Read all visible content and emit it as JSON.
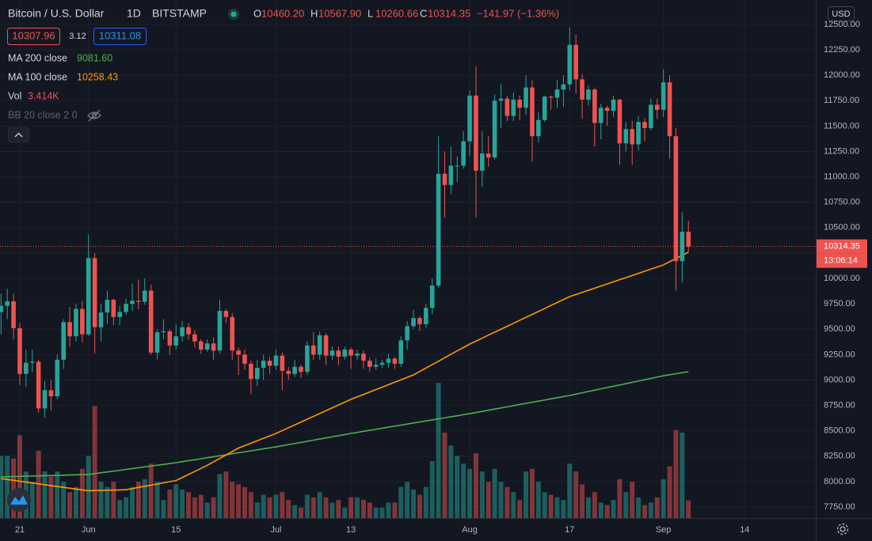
{
  "chart_data": {
    "type": "candlestick",
    "title": "Bitcoin / U.S. Dollar",
    "interval": "1D",
    "exchange": "BITSTAMP",
    "currency": "USD",
    "header": {
      "items": [
        {
          "key": "O",
          "value": "10460.20"
        },
        {
          "key": "H",
          "value": "10567.90"
        },
        {
          "key": "L",
          "value": "10260.66"
        },
        {
          "key": "C",
          "value": "10314.35"
        }
      ],
      "change": "−141.97 (−1.36%)"
    },
    "quote": {
      "bid": "10307.96",
      "spread": "3.12",
      "ask": "10311.08"
    },
    "up_color": "#26a69a",
    "down_color": "#ef5350",
    "grid": true,
    "ylim": [
      7641,
      12741
    ],
    "yticks": [
      {
        "value": 7750,
        "label": "7750.00"
      },
      {
        "value": 8000,
        "label": "8000.00"
      },
      {
        "value": 8250,
        "label": "8250.00"
      },
      {
        "value": 8500,
        "label": "8500.00"
      },
      {
        "value": 8750,
        "label": "8750.00"
      },
      {
        "value": 9000,
        "label": "9000.00"
      },
      {
        "value": 9250,
        "label": "9250.00"
      },
      {
        "value": 9500,
        "label": "9500.00"
      },
      {
        "value": 9750,
        "label": "9750.00"
      },
      {
        "value": 10000,
        "label": "10000.00"
      },
      {
        "value": 10250,
        "label": "10250.00"
      },
      {
        "value": 10500,
        "label": "10500.00"
      },
      {
        "value": 10750,
        "label": "10750.00"
      },
      {
        "value": 11000,
        "label": "11000.00"
      },
      {
        "value": 11250,
        "label": "11250.00"
      },
      {
        "value": 11500,
        "label": "11500.00"
      },
      {
        "value": 11750,
        "label": "11750.00"
      },
      {
        "value": 12000,
        "label": "12000.00"
      },
      {
        "value": 12250,
        "label": "12250.00"
      },
      {
        "value": 12500,
        "label": "12500.00"
      }
    ],
    "categories": [
      null,
      null,
      null,
      "21",
      null,
      null,
      null,
      null,
      null,
      null,
      null,
      null,
      null,
      null,
      "Jun",
      null,
      null,
      null,
      null,
      null,
      null,
      null,
      null,
      null,
      null,
      null,
      null,
      null,
      "15",
      null,
      null,
      null,
      null,
      null,
      null,
      null,
      null,
      null,
      null,
      null,
      null,
      null,
      null,
      null,
      "Jul",
      null,
      null,
      null,
      null,
      null,
      null,
      null,
      null,
      null,
      null,
      null,
      "13",
      null,
      null,
      null,
      null,
      null,
      null,
      null,
      null,
      null,
      null,
      null,
      null,
      null,
      null,
      null,
      null,
      null,
      null,
      "Aug",
      null,
      null,
      null,
      null,
      null,
      null,
      null,
      null,
      null,
      null,
      null,
      null,
      null,
      null,
      null,
      "17",
      null,
      null,
      null,
      null,
      null,
      null,
      null,
      null,
      null,
      null,
      null,
      null,
      null,
      null,
      "Sep",
      null,
      null,
      null,
      null,
      null,
      null,
      null,
      null,
      null,
      null,
      null,
      null,
      "14",
      null,
      null,
      null,
      null,
      null,
      null,
      null,
      null,
      null,
      null,
      null
    ],
    "open": [
      9670,
      9730,
      9775,
      9510,
      9060,
      9170,
      9180,
      8720,
      8900,
      8840,
      9200,
      9570,
      9430,
      9700,
      9450,
      10200,
      9520,
      9665,
      9790,
      9620,
      9670,
      9750,
      9780,
      9770,
      9880,
      9270,
      9470,
      9480,
      9340,
      9430,
      9520,
      9450,
      9380,
      9300,
      9360,
      9290,
      9680,
      9620,
      9290,
      9250,
      9160,
      9010,
      9120,
      9190,
      9140,
      9240,
      9090,
      9060,
      9130,
      9080,
      9340,
      9250,
      9440,
      9240,
      9290,
      9230,
      9300,
      9240,
      9260,
      9190,
      9130,
      9150,
      9170,
      9210,
      9160,
      9390,
      9530,
      9610,
      9550,
      9710,
      9930,
      11030,
      10920,
      11110,
      11110,
      11350,
      11800,
      11060,
      11230,
      11190,
      11750,
      11770,
      11600,
      11760,
      11680,
      11880,
      11400,
      11560,
      11790,
      11780,
      11860,
      11910,
      12300,
      11960,
      11760,
      11860,
      11530,
      11680,
      11650,
      11760,
      11330,
      11470,
      11320,
      11540,
      11480,
      11710,
      11660,
      11930,
      11400,
      10170,
      10460.2,
      null,
      null,
      null,
      null,
      null,
      null,
      null,
      null,
      null,
      null,
      null,
      null,
      null,
      null,
      null,
      null,
      null,
      null,
      null,
      null
    ],
    "high": [
      9850,
      9900,
      9850,
      9560,
      9300,
      9300,
      9200,
      8990,
      9000,
      9250,
      9600,
      9720,
      9750,
      9780,
      10430,
      10250,
      9750,
      9880,
      9800,
      9730,
      9800,
      9950,
      9990,
      10000,
      9940,
      9500,
      9600,
      9500,
      9550,
      9580,
      9560,
      9490,
      9400,
      9400,
      9420,
      9790,
      9700,
      9660,
      9320,
      9300,
      9190,
      9200,
      9250,
      9230,
      9300,
      9270,
      9130,
      9200,
      9150,
      9380,
      9470,
      9480,
      9460,
      9330,
      9330,
      9330,
      9320,
      9300,
      9290,
      9220,
      9210,
      9200,
      9260,
      9230,
      9430,
      9580,
      9690,
      9630,
      9750,
      10000,
      11400,
      11250,
      11300,
      11200,
      11450,
      11850,
      12090,
      11450,
      11400,
      11810,
      11910,
      11800,
      11830,
      11800,
      12000,
      11950,
      11640,
      11800,
      11800,
      11950,
      12000,
      12470,
      12400,
      12010,
      11900,
      11880,
      11720,
      11700,
      11800,
      11770,
      11540,
      11550,
      11600,
      11580,
      11770,
      11770,
      12060,
      12000,
      11480,
      10650,
      10567.9,
      null,
      null,
      null,
      null,
      null,
      null,
      null,
      null,
      null,
      null,
      null,
      null,
      null,
      null,
      null,
      null,
      null,
      null,
      null,
      null
    ],
    "low": [
      9450,
      9600,
      9400,
      8950,
      8930,
      9080,
      8680,
      8630,
      8700,
      8810,
      9110,
      9330,
      9380,
      9370,
      9430,
      9260,
      9380,
      9550,
      9540,
      9540,
      9640,
      9680,
      9700,
      9740,
      9250,
      9200,
      9400,
      9250,
      9300,
      9380,
      9400,
      9320,
      9260,
      9280,
      9200,
      9260,
      9560,
      9200,
      9050,
      9100,
      8860,
      8940,
      9000,
      9060,
      9100,
      8900,
      9000,
      9030,
      9020,
      9050,
      9200,
      9200,
      9150,
      9200,
      9150,
      9200,
      9110,
      9200,
      9110,
      9080,
      9100,
      9120,
      9120,
      9110,
      9130,
      9300,
      9500,
      9480,
      9510,
      9650,
      9910,
      10600,
      10830,
      10950,
      11080,
      11200,
      10600,
      10900,
      11100,
      11170,
      11480,
      11550,
      11550,
      11560,
      11610,
      11150,
      11340,
      11540,
      11660,
      11680,
      11690,
      11850,
      11820,
      11570,
      11700,
      11300,
      11370,
      11500,
      11590,
      11120,
      11250,
      11120,
      11260,
      11350,
      11460,
      11570,
      11590,
      11180,
      9880,
      9960,
      10260.66,
      null,
      null,
      null,
      null,
      null,
      null,
      null,
      null,
      null,
      null,
      null,
      null,
      null,
      null,
      null,
      null,
      null,
      null,
      null,
      null
    ],
    "close": [
      9730,
      9775,
      9510,
      9060,
      9170,
      9180,
      8720,
      8900,
      8840,
      9200,
      9570,
      9430,
      9700,
      9450,
      10200,
      9520,
      9665,
      9790,
      9620,
      9670,
      9750,
      9780,
      9770,
      9880,
      9270,
      9470,
      9480,
      9340,
      9430,
      9520,
      9450,
      9380,
      9300,
      9360,
      9290,
      9680,
      9620,
      9290,
      9250,
      9160,
      9010,
      9120,
      9190,
      9140,
      9240,
      9090,
      9060,
      9130,
      9080,
      9340,
      9250,
      9440,
      9240,
      9290,
      9230,
      9300,
      9240,
      9260,
      9190,
      9130,
      9150,
      9170,
      9210,
      9160,
      9390,
      9530,
      9610,
      9550,
      9710,
      9930,
      11030,
      10920,
      11110,
      11110,
      11350,
      11800,
      11060,
      11230,
      11190,
      11750,
      11770,
      11600,
      11760,
      11680,
      11880,
      11400,
      11560,
      11790,
      11780,
      11860,
      11910,
      12300,
      11960,
      11760,
      11860,
      11530,
      11680,
      11650,
      11760,
      11330,
      11470,
      11320,
      11540,
      11480,
      11710,
      11660,
      11930,
      11400,
      10170,
      10460,
      10314.35,
      null,
      null,
      null,
      null,
      null,
      null,
      null,
      null,
      null,
      null,
      null,
      null,
      null,
      null,
      null,
      null,
      null,
      null,
      null,
      null
    ],
    "volume": {
      "name": "Vol",
      "value_label": "3.414K",
      "y2lim": [
        0,
        100000
      ],
      "up_color": "rgba(38,166,154,0.5)",
      "down_color": "rgba(239,83,80,0.5)",
      "values": [
        12000,
        12000,
        11500,
        16000,
        9000,
        7000,
        13000,
        9000,
        8000,
        9000,
        7000,
        5000,
        6000,
        9500,
        12000,
        21600,
        7000,
        6000,
        7000,
        3500,
        4000,
        6000,
        7000,
        7500,
        10500,
        7000,
        3500,
        5500,
        6500,
        5500,
        5000,
        4000,
        4500,
        3000,
        4000,
        8500,
        9000,
        7000,
        6500,
        6000,
        5000,
        3000,
        4500,
        4000,
        4500,
        5000,
        3500,
        2500,
        2000,
        4500,
        4000,
        5000,
        4000,
        3000,
        3500,
        2000,
        4000,
        4000,
        3500,
        3000,
        2000,
        2000,
        3000,
        3000,
        6000,
        7000,
        5500,
        4500,
        6000,
        11000,
        26100,
        16500,
        14000,
        12000,
        10500,
        9500,
        12500,
        9000,
        7000,
        9500,
        7000,
        6000,
        5000,
        3500,
        9000,
        9500,
        7000,
        5000,
        4500,
        4000,
        3500,
        10500,
        9000,
        6500,
        4000,
        5000,
        3000,
        2500,
        3500,
        7500,
        5000,
        7000,
        4000,
        2500,
        3000,
        4000,
        7500,
        10000,
        17000,
        16500,
        3414,
        null,
        null,
        null,
        null,
        null,
        null,
        null,
        null,
        null,
        null,
        null,
        null,
        null,
        null,
        null,
        null,
        null,
        null,
        null,
        null
      ]
    },
    "series": [
      {
        "name": "MA 200 close",
        "value_label": "9081.60",
        "color": "#4caf50",
        "values": [
          8046,
          8048,
          8049,
          8051,
          8053,
          8055,
          8056,
          8058,
          8060,
          8061,
          8063,
          8065,
          8067,
          8068,
          8070,
          8078,
          8087,
          8095,
          8103,
          8111,
          8120,
          8128,
          8136,
          8145,
          8153,
          8161,
          8169,
          8178,
          8186,
          8196,
          8206,
          8215,
          8225,
          8235,
          8245,
          8254,
          8264,
          8274,
          8284,
          8293,
          8303,
          8313,
          8323,
          8332,
          8342,
          8353,
          8364,
          8375,
          8386,
          8397,
          8408,
          8419,
          8430,
          8441,
          8452,
          8463,
          8474,
          8484,
          8495,
          8505,
          8515,
          8525,
          8536,
          8546,
          8556,
          8566,
          8577,
          8587,
          8597,
          8607,
          8618,
          8628,
          8638,
          8648,
          8659,
          8669,
          8680,
          8691,
          8703,
          8714,
          8725,
          8736,
          8747,
          8759,
          8770,
          8781,
          8792,
          8803,
          8814,
          8826,
          8837,
          8848,
          8861,
          8874,
          8887,
          8900,
          8913,
          8926,
          8939,
          8951,
          8964,
          8977,
          8990,
          9003,
          9016,
          9029,
          9042,
          9052,
          9062,
          9072,
          9081.6,
          null,
          null,
          null,
          null,
          null,
          null,
          null,
          null,
          null,
          null,
          null,
          null,
          null,
          null,
          null,
          null,
          null,
          null,
          null,
          null
        ]
      },
      {
        "name": "MA 100 close",
        "value_label": "10258.43",
        "color": "#ff9800",
        "values": [
          8030,
          8021,
          8013,
          8004,
          7995,
          7986,
          7978,
          7969,
          7960,
          7952,
          7943,
          7935,
          7927,
          7918,
          7910,
          7912,
          7913,
          7915,
          7917,
          7918,
          7920,
          7931,
          7943,
          7954,
          7965,
          7976,
          7988,
          7999,
          8010,
          8040,
          8070,
          8100,
          8130,
          8160,
          8194,
          8228,
          8262,
          8296,
          8330,
          8354,
          8378,
          8402,
          8426,
          8450,
          8474,
          8502,
          8530,
          8558,
          8586,
          8614,
          8642,
          8670,
          8698,
          8726,
          8754,
          8782,
          8810,
          8834,
          8858,
          8882,
          8906,
          8930,
          8954,
          8978,
          9002,
          9026,
          9050,
          9084,
          9118,
          9151,
          9185,
          9219,
          9253,
          9287,
          9320,
          9354,
          9383,
          9412,
          9442,
          9471,
          9500,
          9529,
          9558,
          9588,
          9617,
          9646,
          9675,
          9704,
          9734,
          9763,
          9792,
          9821,
          9842,
          9863,
          9883,
          9904,
          9925,
          9946,
          9967,
          9988,
          10008,
          10029,
          10050,
          10071,
          10092,
          10112,
          10133,
          10165,
          10196,
          10227,
          10258.43,
          null,
          null,
          null,
          null,
          null,
          null,
          null,
          null,
          null,
          null,
          null,
          null,
          null,
          null,
          null,
          null,
          null,
          null,
          null,
          null
        ]
      }
    ],
    "hidden_indicator": "BB 20 close 2 0",
    "last_price": {
      "label": "10314.35",
      "countdown": "13:06:14"
    }
  }
}
